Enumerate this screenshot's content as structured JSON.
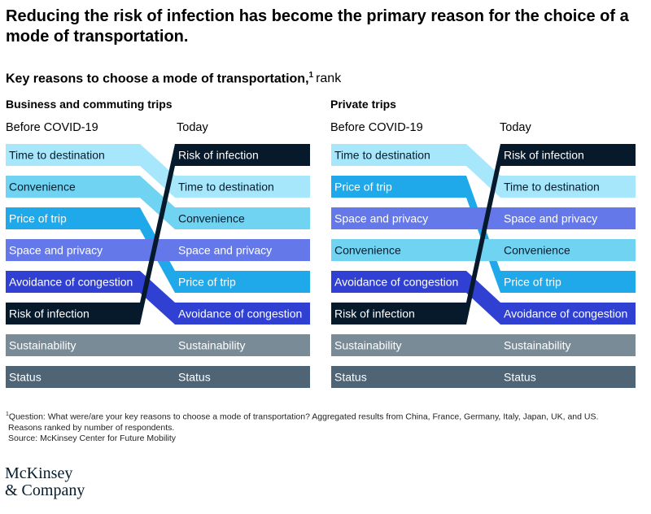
{
  "title": "Reducing the risk of infection has become the primary reason for the choice of a mode of transportation.",
  "subtitle": {
    "main": "Key reasons to choose a mode of transportation,",
    "note_mark": "1",
    "unit": "rank"
  },
  "footnote": {
    "mark": "1",
    "line1": "Question: What were/are your key reasons to choose a mode of transportation? Aggregated results from China, France, Germany, Italy, Japan, UK, and US.",
    "line2": "Reasons ranked by number of respondents.",
    "source": "Source: McKinsey Center for Future Mobility"
  },
  "logo": {
    "line1": "McKinsey",
    "line2": "& Company"
  },
  "colors": {
    "Time to destination": "#a6e7fb",
    "Convenience": "#6fd3f1",
    "Price of trip": "#20a9ea",
    "Space and privacy": "#6578ea",
    "Avoidance of congestion": "#2f40d2",
    "Risk of infection": "#061a2b",
    "Sustainability": "#7a8b98",
    "Status": "#4f6575"
  },
  "chart_data": [
    {
      "type": "slope",
      "title": "Business and commuting trips",
      "xlabels": [
        "Before COVID-19",
        "Today"
      ],
      "before": [
        "Time to destination",
        "Convenience",
        "Price of trip",
        "Space and privacy",
        "Avoidance of congestion",
        "Risk of infection",
        "Sustainability",
        "Status"
      ],
      "today": [
        "Risk of infection",
        "Time to destination",
        "Convenience",
        "Space and privacy",
        "Price of trip",
        "Avoidance of congestion",
        "Sustainability",
        "Status"
      ]
    },
    {
      "type": "slope",
      "title": "Private trips",
      "xlabels": [
        "Before COVID-19",
        "Today"
      ],
      "before": [
        "Time to destination",
        "Price of trip",
        "Space and privacy",
        "Convenience",
        "Avoidance of congestion",
        "Risk of infection",
        "Sustainability",
        "Status"
      ],
      "today": [
        "Risk of infection",
        "Time to destination",
        "Space and privacy",
        "Convenience",
        "Price of trip",
        "Avoidance of congestion",
        "Sustainability",
        "Status"
      ]
    }
  ]
}
